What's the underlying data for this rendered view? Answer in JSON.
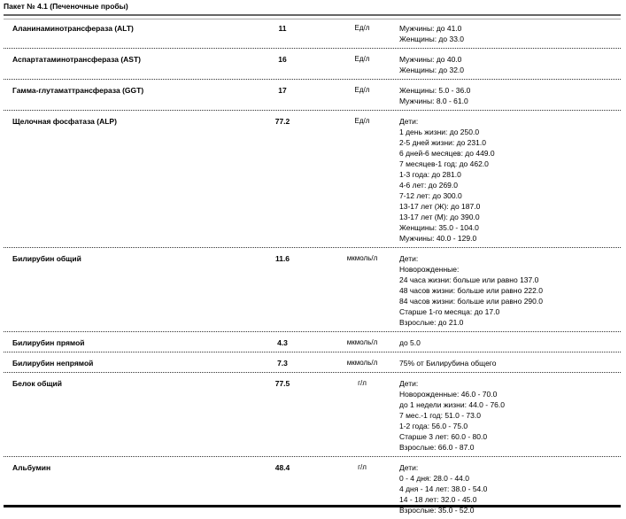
{
  "header": {
    "title": "Пакет № 4.1 (Печеночные пробы)"
  },
  "rows": [
    {
      "name": "Аланинаминотрансфераза (ALT)",
      "value": "11",
      "unit": "Ед/л",
      "reference": [
        "Мужчины: до 41.0",
        "Женщины: до 33.0"
      ]
    },
    {
      "name": "Аспартатаминотрансфераза (AST)",
      "value": "16",
      "unit": "Ед/л",
      "reference": [
        "Мужчины: до 40.0",
        "Женщины: до 32.0"
      ]
    },
    {
      "name": "Гамма-глутаматтрансфераза (GGT)",
      "value": "17",
      "unit": "Ед/л",
      "reference": [
        "Женщины: 5.0 - 36.0",
        "Мужчины: 8.0 - 61.0"
      ]
    },
    {
      "name": "Щелочная фосфатаза (ALP)",
      "value": "77.2",
      "unit": "Ед/л",
      "reference": [
        "Дети:",
        "1 день жизни: до 250.0",
        "2-5 дней жизни: до 231.0",
        "6 дней-6 месяцев: до 449.0",
        "7 месяцев-1 год: до 462.0",
        "1-3 года: до 281.0",
        "4-6 лет: до 269.0",
        "7-12 лет: до 300.0",
        "13-17 лет (Ж): до 187.0",
        "13-17 лет (М): до 390.0",
        "Женщины: 35.0 - 104.0",
        "Мужчины: 40.0 - 129.0"
      ]
    },
    {
      "name": "Билирубин общий",
      "value": "11.6",
      "unit": "мкмоль/л",
      "reference": [
        "Дети:",
        "Новорожденные:",
        "24 часа жизни: больше или равно 137.0",
        "48 часов жизни: больше или равно 222.0",
        "84 часов жизни: больше или равно 290.0",
        "Старше 1-го месяца: до 17.0",
        "Взрослые: до 21.0"
      ]
    },
    {
      "name": "Билирубин прямой",
      "value": "4.3",
      "unit": "мкмоль/л",
      "reference": [
        "до 5.0"
      ]
    },
    {
      "name": "Билирубин непрямой",
      "value": "7.3",
      "unit": "мкмоль/л",
      "reference": [
        "75% от Билирубина общего"
      ]
    },
    {
      "name": "Белок общий",
      "value": "77.5",
      "unit": "г/л",
      "reference": [
        "Дети:",
        "Новорожденные: 46.0 - 70.0",
        "до 1 недели жизни: 44.0 - 76.0",
        "7 мес.-1 год: 51.0 - 73.0",
        "1-2 года: 56.0 - 75.0",
        "Старше 3 лет: 60.0 - 80.0",
        "Взрослые: 66.0 - 87.0"
      ]
    },
    {
      "name": "Альбумин",
      "value": "48.4",
      "unit": "г/л",
      "reference": [
        "Дети:",
        "0 - 4 дня: 28.0 - 44.0",
        "4 дня - 14 лет: 38.0 - 54.0",
        "14 - 18 лет: 32.0 - 45.0",
        "Взрослые: 35.0 - 52.0"
      ]
    }
  ]
}
